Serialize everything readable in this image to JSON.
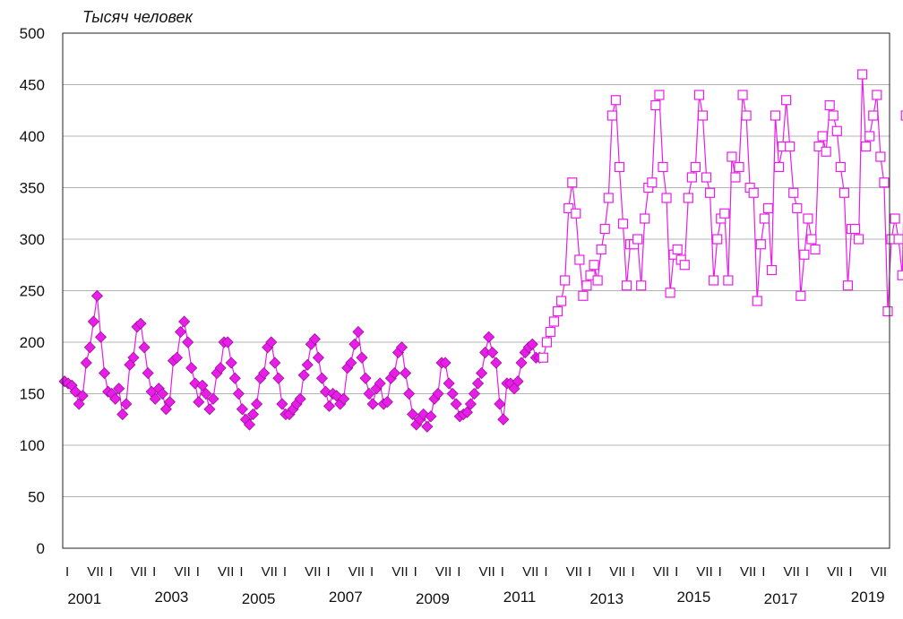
{
  "chart_data": {
    "type": "line",
    "ylabel": "Тысяч человек",
    "ylim": [
      0,
      500
    ],
    "yticks": [
      0,
      50,
      100,
      150,
      200,
      250,
      300,
      350,
      400,
      450,
      500
    ],
    "grid": true,
    "period_marks": [
      "I",
      "VII"
    ],
    "year_labels": [
      "2001",
      "2003",
      "2005",
      "2007",
      "2009",
      "2011",
      "2013",
      "2015",
      "2017",
      "2019"
    ],
    "start_year": 2001,
    "end_year": 2019,
    "series": [
      {
        "marker": "diamond-filled",
        "color": "#e81ee8",
        "values": [
          162,
          160,
          158,
          152,
          140,
          148,
          180,
          195,
          220,
          245,
          205,
          170,
          152,
          150,
          145,
          155,
          130,
          140,
          178,
          185,
          215,
          218,
          195,
          170,
          152,
          145,
          155,
          150,
          135,
          142,
          182,
          185,
          210,
          220,
          200,
          175,
          160,
          142,
          158,
          150,
          135,
          145,
          170,
          175,
          200,
          200,
          180,
          165,
          150,
          135,
          125,
          120,
          130,
          140,
          165,
          170,
          195,
          200,
          180,
          165,
          140,
          130,
          130,
          135,
          140,
          145,
          168,
          178,
          198,
          203,
          185,
          165,
          152,
          138,
          150,
          148,
          140,
          145,
          175,
          180,
          198,
          210,
          185,
          165,
          150,
          140,
          155,
          160,
          140,
          142,
          165,
          170,
          190,
          195,
          170,
          150,
          130,
          120,
          125,
          130,
          118,
          128,
          145,
          150,
          180,
          180,
          160,
          150,
          140,
          128,
          130,
          132,
          140,
          150,
          160,
          170,
          190,
          205,
          190,
          180,
          140,
          125,
          160,
          160,
          155,
          162,
          180,
          190,
          195,
          198,
          185,
          185
        ]
      },
      {
        "marker": "square-open",
        "color": "#e81ee8",
        "values": [
          185,
          200,
          210,
          220,
          230,
          240,
          260,
          330,
          355,
          325,
          280,
          245,
          255,
          265,
          275,
          260,
          290,
          310,
          340,
          420,
          435,
          370,
          315,
          255,
          295,
          295,
          300,
          255,
          320,
          350,
          355,
          430,
          440,
          370,
          340,
          248,
          285,
          290,
          280,
          275,
          340,
          360,
          370,
          440,
          420,
          360,
          345,
          260,
          300,
          320,
          325,
          260,
          380,
          360,
          370,
          440,
          420,
          350,
          345,
          240,
          295,
          320,
          330,
          270,
          420,
          370,
          390,
          435,
          390,
          345,
          330,
          245,
          285,
          320,
          300,
          290,
          390,
          400,
          385,
          430,
          420,
          405,
          370,
          345,
          255,
          310,
          310,
          300,
          460,
          390,
          400,
          420,
          440,
          380,
          355,
          230,
          300,
          320,
          300,
          265,
          420,
          385
        ]
      }
    ]
  }
}
